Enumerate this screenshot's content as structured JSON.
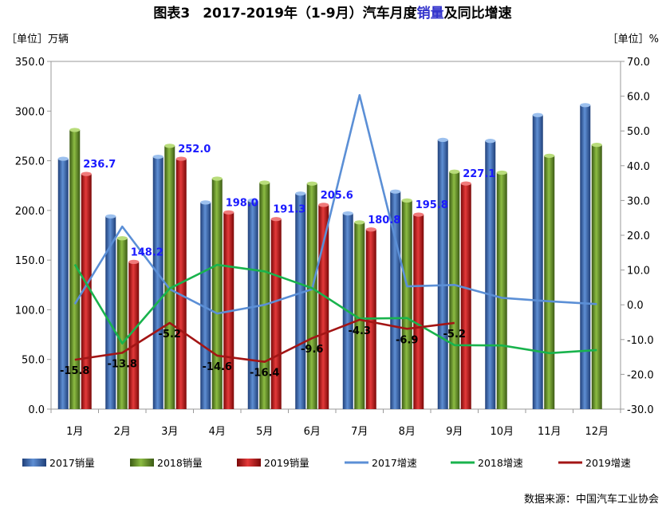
{
  "title": {
    "prefix": "图表3",
    "before": "2017-2019年（1-9月）汽车月度",
    "highlight": "销量",
    "after": "及同比增速"
  },
  "colors": {
    "title_highlight": "#3333cc",
    "bar2017": "#3f6fb5",
    "bar2018": "#6e9a2e",
    "bar2019": "#cc1f1f",
    "line2017": "#5b8fd6",
    "line2018": "#19b34d",
    "line2019": "#a31515",
    "bar_label": "#1a1aff"
  },
  "left_unit": "［单位］万辆",
  "right_unit": "［单位］%",
  "source": "数据来源：中国汽车工业协会",
  "chart_data": {
    "type": "bar",
    "categories": [
      "1月",
      "2月",
      "3月",
      "4月",
      "5月",
      "6月",
      "7月",
      "8月",
      "9月",
      "10月",
      "11月",
      "12月"
    ],
    "ylim": [
      0,
      350
    ],
    "yticks": [
      "0.0",
      "50.0",
      "100.0",
      "150.0",
      "200.0",
      "250.0",
      "300.0",
      "350.0"
    ],
    "y2lim": [
      -30,
      70
    ],
    "y2ticks": [
      "-30.0",
      "-20.0",
      "-10.0",
      "0.0",
      "10.0",
      "20.0",
      "30.0",
      "40.0",
      "50.0",
      "60.0",
      "70.0"
    ],
    "grid": false,
    "legend_position": "bottom",
    "bar_series": [
      {
        "name": "2017销量",
        "values": [
          252,
          194,
          254,
          208,
          210,
          217,
          197,
          219,
          271,
          270,
          296,
          306
        ]
      },
      {
        "name": "2018销量",
        "values": [
          281,
          172,
          265,
          232,
          228,
          227,
          188,
          210,
          239,
          238,
          255,
          266
        ]
      },
      {
        "name": "2019销量",
        "values": [
          236.7,
          148.2,
          252.0,
          198.0,
          191.3,
          205.6,
          180.8,
          195.8,
          227.1
        ]
      }
    ],
    "bar_labels_2019": [
      "236.7",
      "148.2",
      "252.0",
      "198.0",
      "191.3",
      "205.6",
      "180.8",
      "195.8",
      "227.1"
    ],
    "line_series": [
      {
        "name": "2017增速",
        "values": [
          0.2,
          22.5,
          4.5,
          -2.5,
          0,
          4.5,
          60.3,
          5.3,
          5.7,
          2.0,
          1.0,
          0.2
        ]
      },
      {
        "name": "2018增速",
        "values": [
          11.6,
          -11.1,
          4.7,
          11.5,
          9.6,
          4.8,
          -4.0,
          -3.8,
          -11.6,
          -11.7,
          -13.9,
          -13.0
        ]
      },
      {
        "name": "2019增速",
        "values": [
          -15.8,
          -13.8,
          -5.2,
          -14.6,
          -16.4,
          -9.6,
          -4.3,
          -6.9,
          -5.2
        ]
      }
    ],
    "growth_labels_2019": [
      "-15.8",
      "-13.8",
      "-5.2",
      "-14.6",
      "-16.4",
      "-9.6",
      "-4.3",
      "-6.9",
      "-5.2"
    ]
  }
}
